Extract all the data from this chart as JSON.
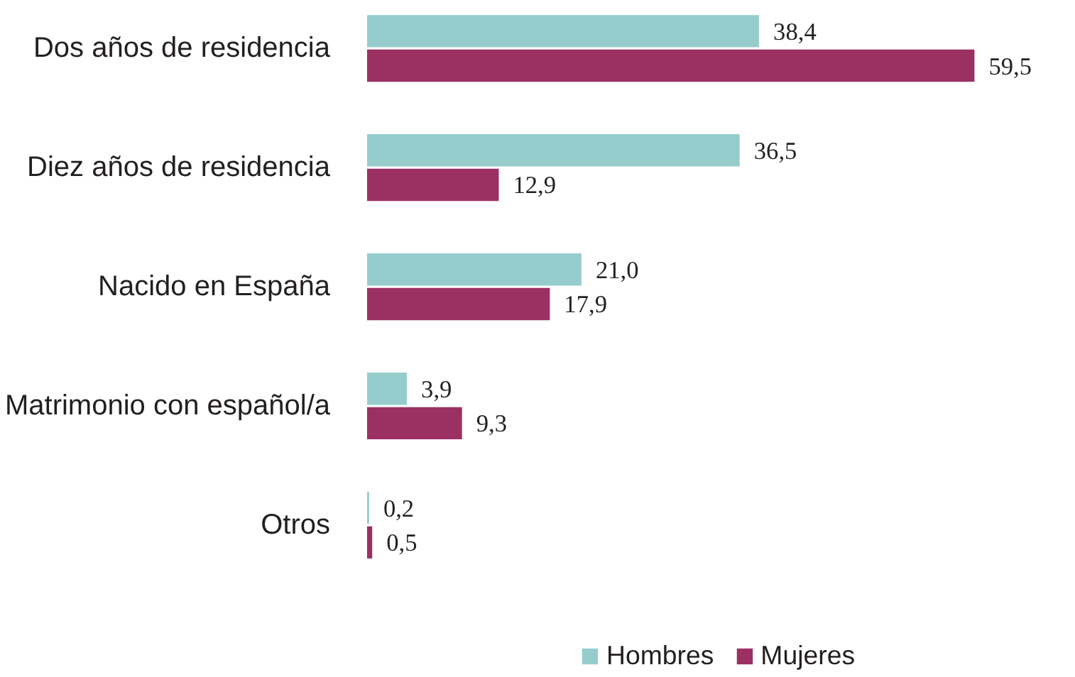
{
  "chart_data": {
    "type": "bar",
    "orientation": "horizontal",
    "categories": [
      "Dos años de residencia",
      "Diez años de residencia",
      "Nacido en España",
      "Matrimonio con español/a",
      "Otros"
    ],
    "series": [
      {
        "name": "Hombres",
        "color": "#96cdcc",
        "values": [
          38.4,
          36.5,
          21.0,
          3.9,
          0.2
        ],
        "value_labels": [
          "38,4",
          "36,5",
          "21,0",
          "3,9",
          "0,2"
        ]
      },
      {
        "name": "Mujeres",
        "color": "#9b3162",
        "values": [
          59.5,
          12.9,
          17.9,
          9.3,
          0.5
        ],
        "value_labels": [
          "59,5",
          "12,9",
          "17,9",
          "9,3",
          "0,5"
        ]
      }
    ],
    "legend": "bottom",
    "grid": false
  }
}
